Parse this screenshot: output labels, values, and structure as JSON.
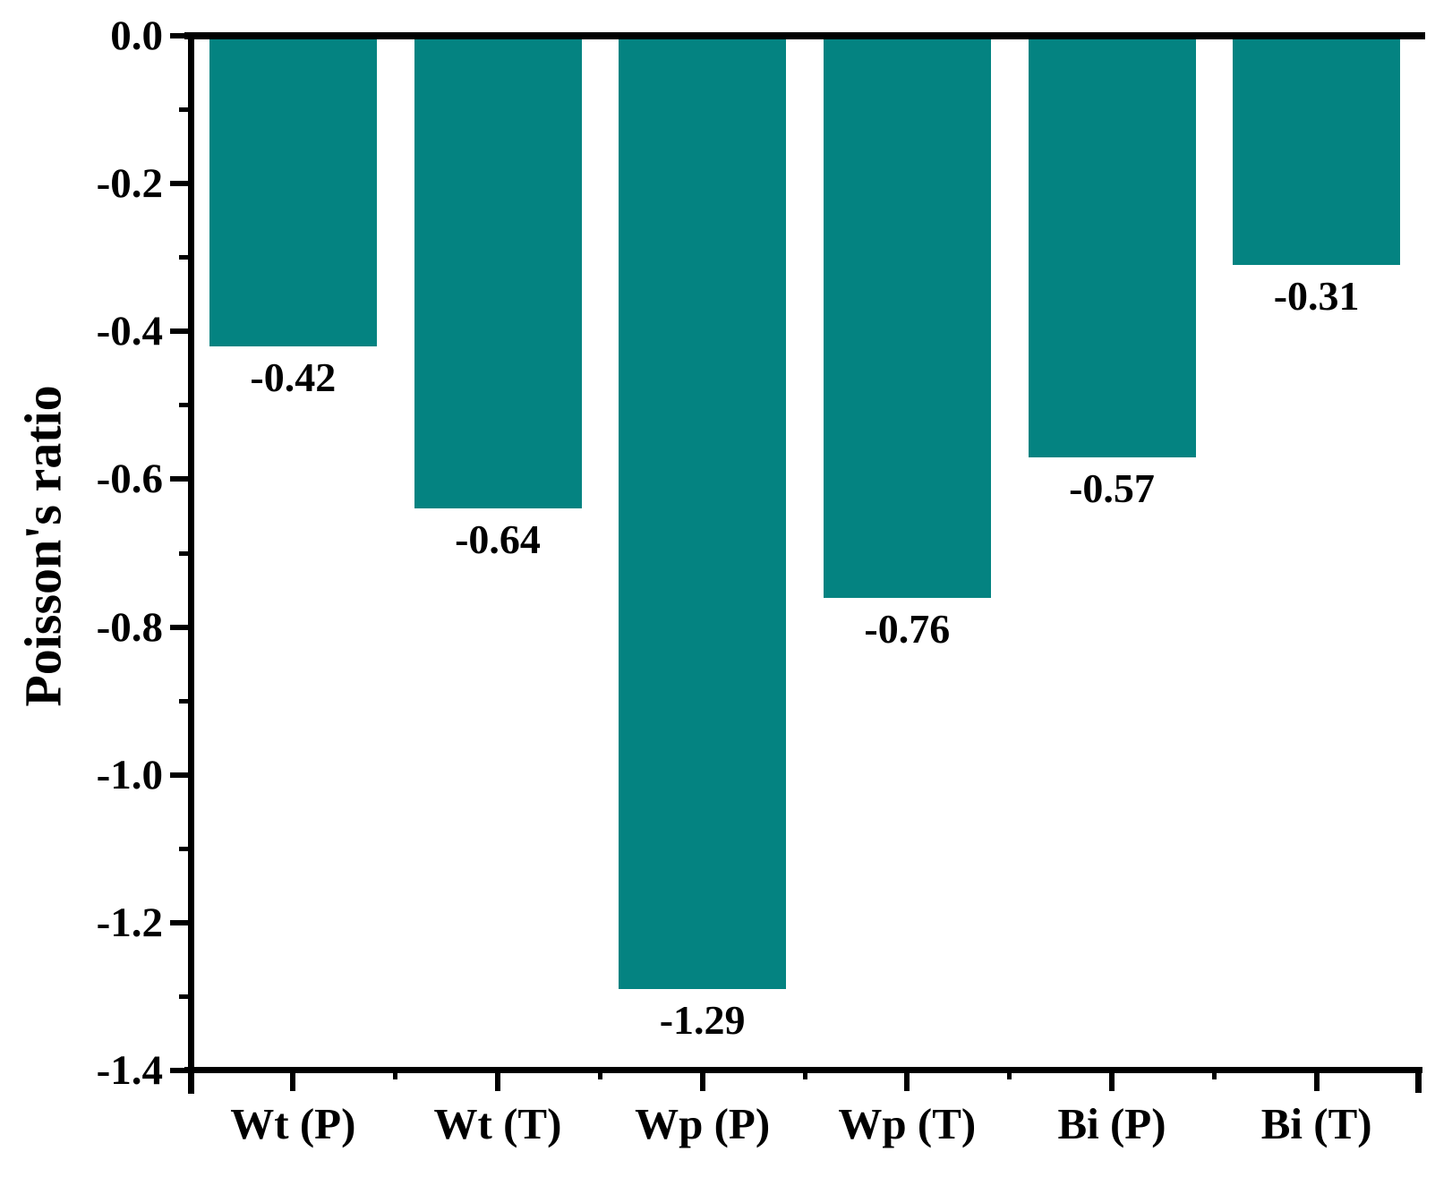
{
  "chart_data": {
    "type": "bar",
    "title": "",
    "categories": [
      "Wt (P)",
      "Wt (T)",
      "Wp (P)",
      "Wp (T)",
      "Bi (P)",
      "Bi (T)"
    ],
    "values": [
      -0.42,
      -0.64,
      -1.29,
      -0.76,
      -0.57,
      -0.31
    ],
    "value_labels": [
      "-0.42",
      "-0.64",
      "-1.29",
      "-0.76",
      "-0.57",
      "-0.31"
    ],
    "xlabel": "",
    "ylabel": "Poisson's ratio",
    "ylim": [
      0.0,
      -1.4
    ],
    "y_major_step": 0.2,
    "y_minor_step": 0.1,
    "y_major_tick_labels": [
      "0.0",
      "-0.2",
      "-0.4",
      "-0.6",
      "-0.8",
      "-1.0",
      "-1.2",
      "-1.4"
    ],
    "grid": false,
    "legend_position": "none",
    "bar_color": "#048381",
    "axis_color": "#000000",
    "text_color": "#000000",
    "bar_orientation": "vertical-negative"
  }
}
